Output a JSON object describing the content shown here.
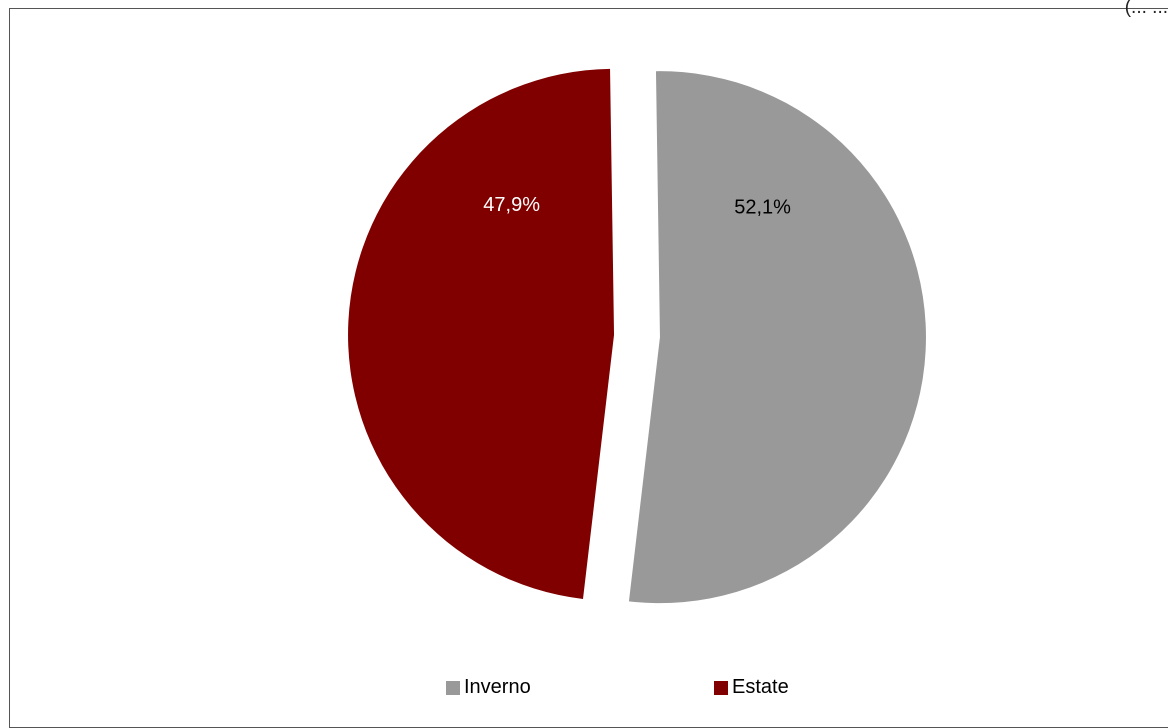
{
  "chart_data": {
    "type": "pie",
    "categories": [
      "Inverno",
      "Estate"
    ],
    "values": [
      52.1,
      47.9
    ],
    "labels": [
      "52,1%",
      "47,9%"
    ],
    "colors": [
      "#999999",
      "#800000"
    ],
    "label_colors": [
      "#000000",
      "#ffffff"
    ],
    "legend": "bottom",
    "exploded": true
  },
  "top_right_text": "(... ..."
}
